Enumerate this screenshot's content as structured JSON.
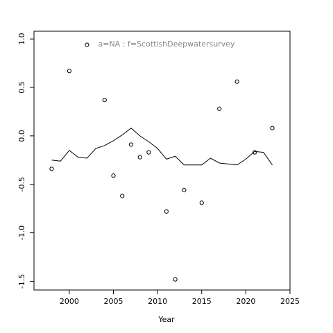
{
  "chart_data": {
    "type": "scatter",
    "annotation": "a=NA  :  f=ScottishDeepwatersurvey",
    "x_label": "Year",
    "xlim": [
      1996,
      2025
    ],
    "xticks": [
      2000,
      2005,
      2010,
      2015,
      2020,
      2025
    ],
    "ylim": [
      -1.59,
      1.08
    ],
    "yticks": [
      {
        "value": -1.5,
        "label": "-1.5"
      },
      {
        "value": -1,
        "label": "-1.0"
      },
      {
        "value": -0.5,
        "label": "-0.5"
      },
      {
        "value": 0,
        "label": "0.0"
      },
      {
        "value": 0.5,
        "label": "0.5"
      },
      {
        "value": 1,
        "label": "1.0"
      }
    ],
    "series": [
      {
        "mode": "points",
        "color": "#000000",
        "x": [
          1998,
          2000,
          2002,
          2004,
          2005,
          2006,
          2007,
          2008,
          2009,
          2011,
          2012,
          2013,
          2015,
          2017,
          2019,
          2021,
          2023
        ],
        "values": [
          -0.34,
          0.67,
          0.94,
          0.37,
          -0.41,
          -0.62,
          -0.09,
          -0.22,
          -0.17,
          -0.78,
          -1.48,
          -0.56,
          -0.69,
          0.28,
          0.56,
          -0.17,
          0.08
        ]
      },
      {
        "mode": "line",
        "color": "#000000",
        "x": [
          1998,
          1999,
          2000,
          2001,
          2002,
          2003,
          2004,
          2005,
          2006,
          2007,
          2008,
          2009,
          2010,
          2011,
          2012,
          2013,
          2014,
          2015,
          2016,
          2017,
          2018,
          2019,
          2020,
          2021,
          2022,
          2023
        ],
        "values": [
          -0.25,
          -0.26,
          -0.15,
          -0.22,
          -0.23,
          -0.13,
          -0.1,
          -0.05,
          0.01,
          0.08,
          0.0,
          -0.06,
          -0.13,
          -0.24,
          -0.21,
          -0.3,
          -0.3,
          -0.3,
          -0.23,
          -0.28,
          -0.29,
          -0.3,
          -0.24,
          -0.16,
          -0.17,
          -0.3
        ]
      }
    ]
  }
}
